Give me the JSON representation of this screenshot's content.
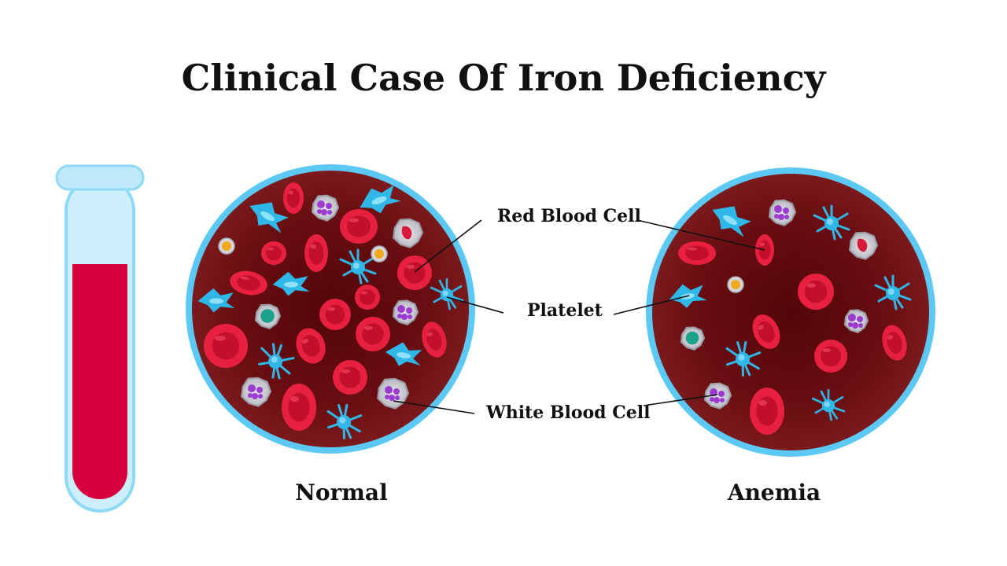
{
  "title": "Clinical Case Of Iron Deficiency",
  "labels": {
    "red_blood_cell": "Red Blood Cell",
    "platelet": "Platelet",
    "white_blood_cell": "White Blood Cell"
  },
  "panels": {
    "normal": "Normal",
    "anemia": "Anemia"
  },
  "colors": {
    "circle_border": "#5cc8f4",
    "blood_dark": "#6e0f12",
    "red_cell": "#e11b3c",
    "platelet": "#2fb7e8",
    "tube_blood": "#d8003e",
    "tube_glass": "#cdeffb"
  }
}
